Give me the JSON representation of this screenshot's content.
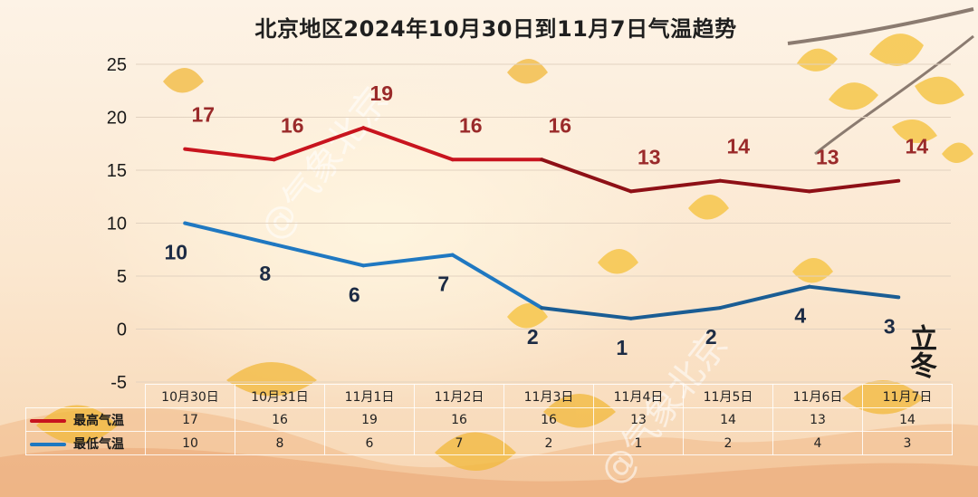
{
  "chart_data": {
    "type": "line",
    "title": "北京地区2024年10月30日到11月7日气温趋势",
    "categories": [
      "10月30日",
      "10月31日",
      "11月1日",
      "11月2日",
      "11月3日",
      "11月4日",
      "11月5日",
      "11月6日",
      "11月7日"
    ],
    "series": [
      {
        "name": "最高气温",
        "values": [
          17,
          16,
          19,
          16,
          16,
          13,
          14,
          13,
          14
        ],
        "color": "#c8141e"
      },
      {
        "name": "最低气温",
        "values": [
          10,
          8,
          6,
          7,
          2,
          1,
          2,
          4,
          3
        ],
        "color": "#1f78c1"
      }
    ],
    "y_ticks": [
      25,
      20,
      15,
      10,
      5,
      0,
      -5
    ],
    "ylim": [
      -5,
      25
    ],
    "grid": true,
    "legend": "data-table-left",
    "high_label_color": "#9a2a2a",
    "low_label_color": "#1c2b44"
  },
  "decor": {
    "seal_text": "立冬",
    "watermark": "@气象北京"
  }
}
